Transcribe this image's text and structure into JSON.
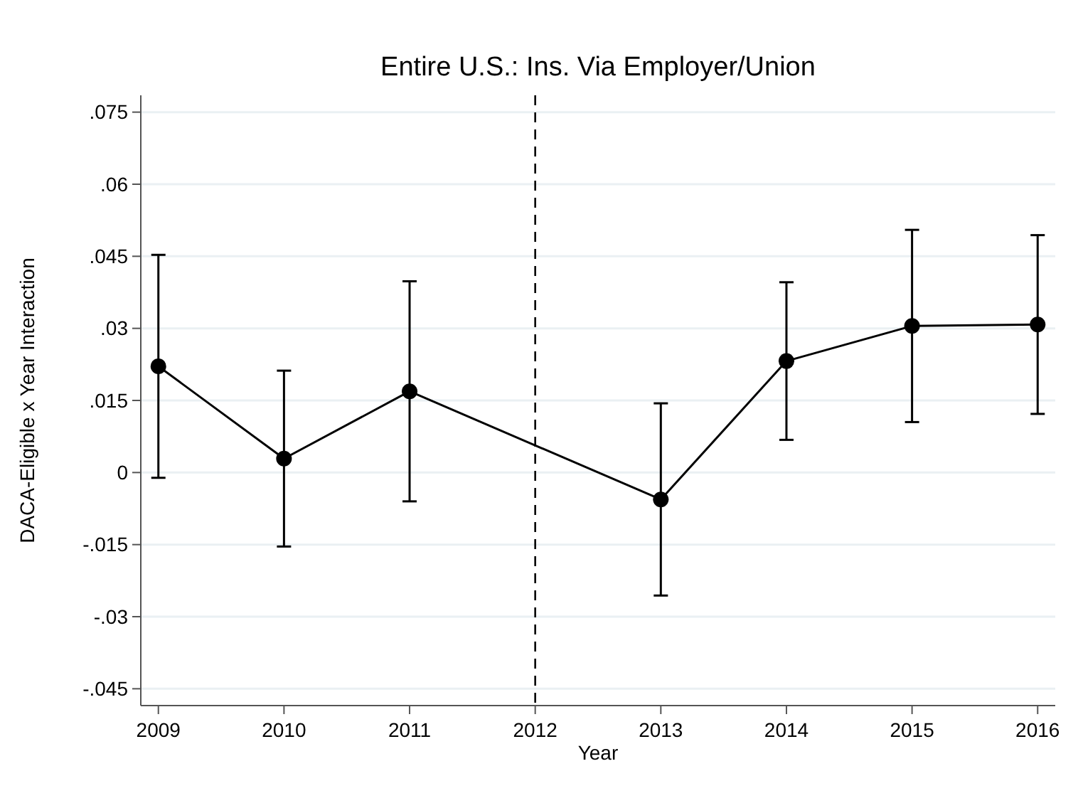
{
  "chart_data": {
    "type": "line",
    "title": "Entire U.S.: Ins. Via Employer/Union",
    "xlabel": "Year",
    "ylabel": "DACA-Eligible x Year Interaction",
    "x": [
      2009,
      2010,
      2011,
      2013,
      2014,
      2015,
      2016
    ],
    "series": [
      {
        "color": "#000000",
        "values": [
          0.0221,
          0.0029,
          0.0169,
          -0.0056,
          0.0232,
          0.0305,
          0.0308
        ],
        "errors": [
          0.0232,
          0.0183,
          0.0229,
          0.02,
          0.0164,
          0.02,
          0.0186
        ]
      }
    ],
    "xlim": [
      2008.86,
      2016.14
    ],
    "xticks": [
      2009,
      2010,
      2011,
      2012,
      2013,
      2014,
      2015,
      2016
    ],
    "ylim": [
      -0.0485,
      0.0785
    ],
    "yticks": [
      {
        "value": -0.045,
        "label": "-.045"
      },
      {
        "value": -0.03,
        "label": "-.03"
      },
      {
        "value": -0.015,
        "label": "-.015"
      },
      {
        "value": 0,
        "label": "0"
      },
      {
        "value": 0.015,
        "label": ".015"
      },
      {
        "value": 0.03,
        "label": ".03"
      },
      {
        "value": 0.045,
        "label": ".045"
      },
      {
        "value": 0.06,
        "label": ".06"
      },
      {
        "value": 0.075,
        "label": ".075"
      }
    ],
    "ref_lines": [
      {
        "axis": "x",
        "value": 2012,
        "line_style": "dashed",
        "color": "#000000"
      }
    ],
    "grid": "y",
    "marker": "circle",
    "line_style": "solid"
  }
}
